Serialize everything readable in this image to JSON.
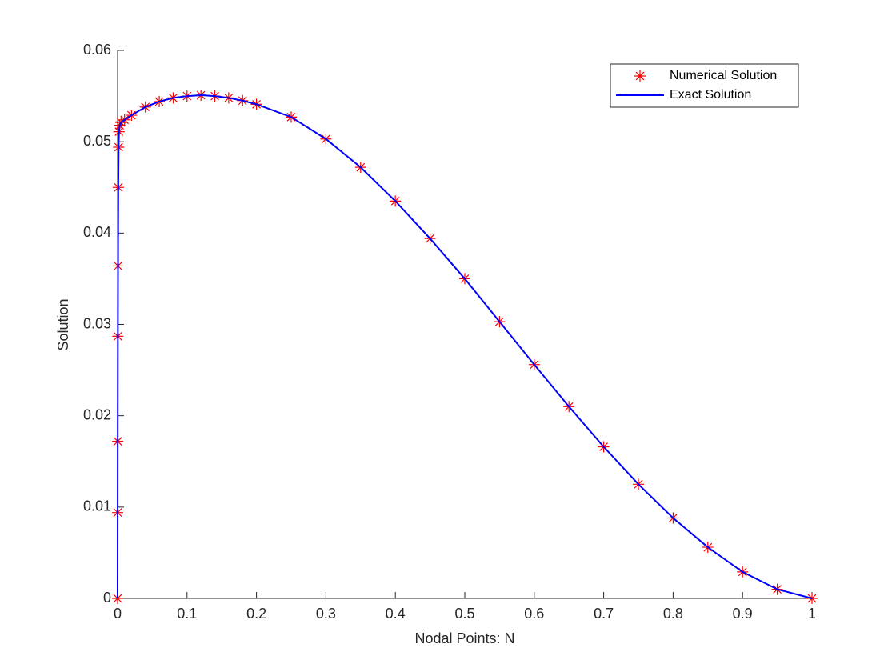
{
  "chart_data": {
    "type": "line-marker",
    "xlabel": "Nodal Points: N",
    "ylabel": "Solution",
    "x": [
      0,
      0.0001,
      0.0002,
      0.0004,
      0.0006,
      0.001,
      0.0015,
      0.002,
      0.003,
      0.005,
      0.01,
      0.02,
      0.04,
      0.06,
      0.08,
      0.1,
      0.12,
      0.14,
      0.16,
      0.18,
      0.2,
      0.25,
      0.3,
      0.35,
      0.4,
      0.45,
      0.5,
      0.55,
      0.6,
      0.65,
      0.7,
      0.75,
      0.8,
      0.85,
      0.9,
      0.95,
      1
    ],
    "series": [
      {
        "name": "Numerical Solution",
        "color": "#ff0000",
        "marker": "asterisk",
        "values": [
          0,
          0.0094,
          0.0172,
          0.0287,
          0.0364,
          0.045,
          0.0494,
          0.0511,
          0.0518,
          0.0521,
          0.0524,
          0.0529,
          0.0538,
          0.0544,
          0.0548,
          0.055,
          0.0551,
          0.055,
          0.0548,
          0.0545,
          0.0541,
          0.0527,
          0.0503,
          0.0472,
          0.0435,
          0.0394,
          0.035,
          0.0303,
          0.0256,
          0.021,
          0.0166,
          0.0125,
          0.0088,
          0.0056,
          0.0029,
          0.001,
          0
        ]
      },
      {
        "name": "Exact Solution",
        "color": "#0000ff",
        "marker": "line",
        "values": [
          0,
          0.0094,
          0.0172,
          0.0287,
          0.0364,
          0.045,
          0.0494,
          0.0511,
          0.0518,
          0.0521,
          0.0524,
          0.0529,
          0.0538,
          0.0544,
          0.0548,
          0.055,
          0.0551,
          0.055,
          0.0548,
          0.0545,
          0.0541,
          0.0527,
          0.0503,
          0.0472,
          0.0435,
          0.0394,
          0.035,
          0.0303,
          0.0256,
          0.021,
          0.0166,
          0.0125,
          0.0088,
          0.0056,
          0.0029,
          0.001,
          0
        ]
      }
    ],
    "xlim": [
      0,
      1
    ],
    "xticks": [
      0,
      0.1,
      0.2,
      0.3,
      0.4,
      0.5,
      0.6,
      0.7,
      0.8,
      0.9,
      1
    ],
    "ylim": [
      0,
      0.06
    ],
    "yticks": [
      0,
      0.01,
      0.02,
      0.03,
      0.04,
      0.05,
      0.06
    ],
    "legend": "top-right"
  }
}
